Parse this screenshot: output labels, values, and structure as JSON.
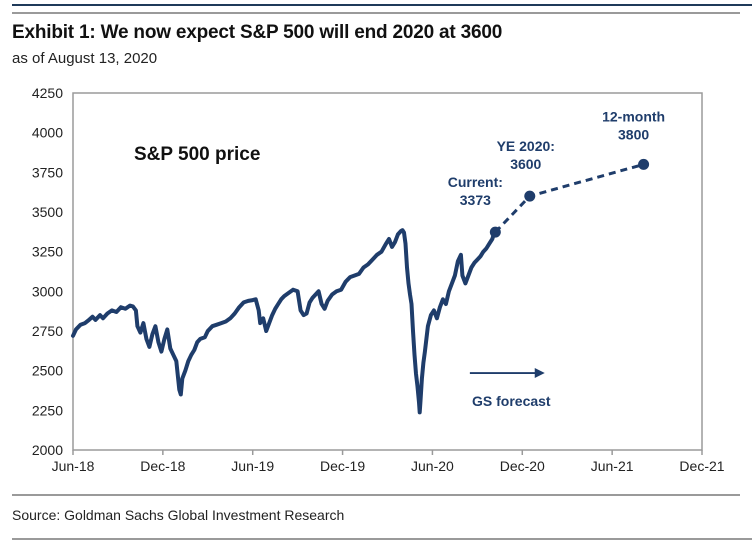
{
  "header": {
    "title": "Exhibit 1: We now expect S&P 500 will end 2020 at 3600",
    "subtitle": "as of August 13, 2020"
  },
  "footer": {
    "source": "Source: Goldman Sachs Global Investment Research"
  },
  "colors": {
    "series": "#1f3d6b",
    "axis": "#9a9a9a",
    "annotation": "#1f3d6b"
  },
  "chart_data": {
    "type": "line",
    "title": "Exhibit 1: We now expect S&P 500 will end 2020 at 3600",
    "subtitle": "as of August 13, 2020",
    "inner_label": "S&P 500 price",
    "xlabel": "",
    "ylabel": "",
    "ylim": [
      2000,
      4250
    ],
    "yticks": [
      2000,
      2250,
      2500,
      2750,
      3000,
      3250,
      3500,
      3750,
      4000,
      4250
    ],
    "xlim_months": [
      0,
      42
    ],
    "xticks": [
      {
        "label": "Jun-18",
        "m": 0
      },
      {
        "label": "Dec-18",
        "m": 6
      },
      {
        "label": "Jun-19",
        "m": 12
      },
      {
        "label": "Dec-19",
        "m": 18
      },
      {
        "label": "Jun-20",
        "m": 24
      },
      {
        "label": "Dec-20",
        "m": 30
      },
      {
        "label": "Jun-21",
        "m": 36
      },
      {
        "label": "Dec-21",
        "m": 42
      }
    ],
    "grid": false,
    "series": [
      {
        "name": "S&P 500 price",
        "style": "solid",
        "x_unit": "months since Jun-18",
        "points": [
          [
            0.0,
            2720
          ],
          [
            0.2,
            2760
          ],
          [
            0.5,
            2790
          ],
          [
            0.8,
            2800
          ],
          [
            1.0,
            2815
          ],
          [
            1.3,
            2840
          ],
          [
            1.5,
            2820
          ],
          [
            1.8,
            2850
          ],
          [
            2.0,
            2830
          ],
          [
            2.3,
            2860
          ],
          [
            2.6,
            2880
          ],
          [
            2.9,
            2870
          ],
          [
            3.2,
            2900
          ],
          [
            3.5,
            2890
          ],
          [
            3.8,
            2910
          ],
          [
            4.0,
            2905
          ],
          [
            4.2,
            2880
          ],
          [
            4.3,
            2780
          ],
          [
            4.5,
            2740
          ],
          [
            4.7,
            2800
          ],
          [
            4.9,
            2700
          ],
          [
            5.1,
            2650
          ],
          [
            5.3,
            2730
          ],
          [
            5.5,
            2780
          ],
          [
            5.7,
            2680
          ],
          [
            5.9,
            2620
          ],
          [
            6.1,
            2700
          ],
          [
            6.3,
            2760
          ],
          [
            6.5,
            2640
          ],
          [
            6.7,
            2600
          ],
          [
            6.9,
            2560
          ],
          [
            7.0,
            2470
          ],
          [
            7.1,
            2380
          ],
          [
            7.2,
            2350
          ],
          [
            7.3,
            2450
          ],
          [
            7.5,
            2500
          ],
          [
            7.7,
            2560
          ],
          [
            7.9,
            2600
          ],
          [
            8.1,
            2630
          ],
          [
            8.3,
            2680
          ],
          [
            8.5,
            2700
          ],
          [
            8.8,
            2710
          ],
          [
            9.0,
            2750
          ],
          [
            9.3,
            2780
          ],
          [
            9.6,
            2790
          ],
          [
            9.9,
            2800
          ],
          [
            10.2,
            2810
          ],
          [
            10.5,
            2830
          ],
          [
            10.8,
            2860
          ],
          [
            11.1,
            2900
          ],
          [
            11.4,
            2930
          ],
          [
            11.7,
            2940
          ],
          [
            12.0,
            2945
          ],
          [
            12.2,
            2950
          ],
          [
            12.4,
            2880
          ],
          [
            12.5,
            2800
          ],
          [
            12.7,
            2830
          ],
          [
            12.9,
            2750
          ],
          [
            13.1,
            2800
          ],
          [
            13.3,
            2850
          ],
          [
            13.5,
            2890
          ],
          [
            13.7,
            2920
          ],
          [
            13.9,
            2950
          ],
          [
            14.1,
            2970
          ],
          [
            14.4,
            2990
          ],
          [
            14.7,
            3010
          ],
          [
            15.0,
            3000
          ],
          [
            15.2,
            2880
          ],
          [
            15.4,
            2850
          ],
          [
            15.6,
            2860
          ],
          [
            15.8,
            2930
          ],
          [
            16.0,
            2960
          ],
          [
            16.2,
            2980
          ],
          [
            16.4,
            3000
          ],
          [
            16.6,
            2920
          ],
          [
            16.8,
            2890
          ],
          [
            17.0,
            2940
          ],
          [
            17.3,
            2980
          ],
          [
            17.6,
            3000
          ],
          [
            17.9,
            3010
          ],
          [
            18.2,
            3060
          ],
          [
            18.5,
            3090
          ],
          [
            18.8,
            3100
          ],
          [
            19.1,
            3110
          ],
          [
            19.4,
            3150
          ],
          [
            19.7,
            3170
          ],
          [
            20.0,
            3200
          ],
          [
            20.3,
            3230
          ],
          [
            20.6,
            3250
          ],
          [
            20.9,
            3300
          ],
          [
            21.1,
            3330
          ],
          [
            21.3,
            3280
          ],
          [
            21.5,
            3310
          ],
          [
            21.7,
            3360
          ],
          [
            21.9,
            3380
          ],
          [
            22.0,
            3385
          ],
          [
            22.1,
            3370
          ],
          [
            22.2,
            3300
          ],
          [
            22.3,
            3150
          ],
          [
            22.4,
            3050
          ],
          [
            22.5,
            2980
          ],
          [
            22.6,
            2920
          ],
          [
            22.7,
            2750
          ],
          [
            22.8,
            2600
          ],
          [
            22.9,
            2480
          ],
          [
            23.0,
            2400
          ],
          [
            23.1,
            2300
          ],
          [
            23.15,
            2237
          ],
          [
            23.2,
            2300
          ],
          [
            23.3,
            2450
          ],
          [
            23.4,
            2550
          ],
          [
            23.5,
            2620
          ],
          [
            23.6,
            2700
          ],
          [
            23.7,
            2780
          ],
          [
            23.9,
            2850
          ],
          [
            24.1,
            2880
          ],
          [
            24.3,
            2830
          ],
          [
            24.5,
            2900
          ],
          [
            24.7,
            2950
          ],
          [
            24.9,
            2920
          ],
          [
            25.1,
            3000
          ],
          [
            25.3,
            3050
          ],
          [
            25.5,
            3100
          ],
          [
            25.7,
            3190
          ],
          [
            25.9,
            3230
          ],
          [
            26.0,
            3100
          ],
          [
            26.2,
            3050
          ],
          [
            26.4,
            3100
          ],
          [
            26.6,
            3150
          ],
          [
            26.8,
            3180
          ],
          [
            27.0,
            3200
          ],
          [
            27.2,
            3220
          ],
          [
            27.4,
            3250
          ],
          [
            27.6,
            3270
          ],
          [
            27.8,
            3300
          ],
          [
            28.0,
            3330
          ],
          [
            28.1,
            3360
          ],
          [
            28.2,
            3373
          ]
        ]
      },
      {
        "name": "GS forecast",
        "style": "dashed",
        "x_unit": "months since Jun-18",
        "points": [
          [
            28.2,
            3373
          ],
          [
            30.5,
            3600
          ],
          [
            38.1,
            3800
          ]
        ]
      }
    ],
    "annotations": [
      {
        "id": "current",
        "lines": [
          "Current:",
          "3373"
        ],
        "m": 28.2,
        "value": 3373
      },
      {
        "id": "ye2020",
        "lines": [
          "YE 2020:",
          "3600"
        ],
        "m": 30.5,
        "value": 3600
      },
      {
        "id": "twelve-month",
        "lines": [
          "12-month",
          "3800"
        ],
        "m": 38.1,
        "value": 3800
      }
    ],
    "forecast_label": "GS forecast",
    "forecast_arrow": {
      "from_m": 26.5,
      "to_m": 31.5,
      "value": 2485
    }
  }
}
